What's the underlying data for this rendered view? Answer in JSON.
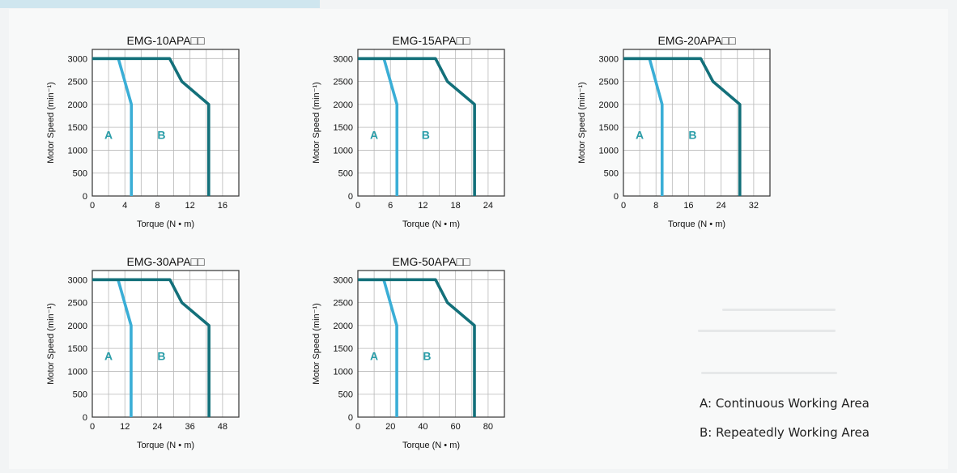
{
  "header_band_color": "#cfe6ef",
  "colors": {
    "continuous": "#3aaed6",
    "repeated": "#13707a",
    "area_label": "#2a9da8",
    "grid": "#b8b8b8",
    "frame": "#333333"
  },
  "legend": {
    "a": "A: Continuous Working Area",
    "b": "B: Repeatedly Working Area"
  },
  "chart_data": [
    {
      "type": "line",
      "title": "EMG-10APA□□",
      "xlabel": "Torque (N • m)",
      "ylabel": "Motor  Speed (min⁻¹)",
      "xlim": [
        0,
        18
      ],
      "ylim": [
        0,
        3200
      ],
      "xticks": [
        0,
        4,
        8,
        12,
        16
      ],
      "yticks": [
        0,
        500,
        1000,
        1500,
        2000,
        2500,
        3000
      ],
      "grid": true,
      "area_labels": [
        {
          "text": "A",
          "x": 2,
          "y": 1250
        },
        {
          "text": "B",
          "x": 8.5,
          "y": 1250
        }
      ],
      "series": [
        {
          "name": "A",
          "x": [
            0,
            3.2,
            4.8,
            4.8
          ],
          "y": [
            3000,
            3000,
            2000,
            0
          ]
        },
        {
          "name": "B",
          "x": [
            0,
            9.5,
            11,
            14.3,
            14.3
          ],
          "y": [
            3000,
            3000,
            2500,
            2000,
            0
          ]
        }
      ]
    },
    {
      "type": "line",
      "title": "EMG-15APA□□",
      "xlabel": "Torque (N • m)",
      "ylabel": "Motor  Speed (min⁻¹)",
      "xlim": [
        0,
        27
      ],
      "ylim": [
        0,
        3200
      ],
      "xticks": [
        0,
        6,
        12,
        18,
        24
      ],
      "yticks": [
        0,
        500,
        1000,
        1500,
        2000,
        2500,
        3000
      ],
      "grid": true,
      "area_labels": [
        {
          "text": "A",
          "x": 3,
          "y": 1250
        },
        {
          "text": "B",
          "x": 12.5,
          "y": 1250
        }
      ],
      "series": [
        {
          "name": "A",
          "x": [
            0,
            4.8,
            7.2,
            7.2
          ],
          "y": [
            3000,
            3000,
            2000,
            0
          ]
        },
        {
          "name": "B",
          "x": [
            0,
            14.3,
            16.5,
            21.5,
            21.5
          ],
          "y": [
            3000,
            3000,
            2500,
            2000,
            0
          ]
        }
      ]
    },
    {
      "type": "line",
      "title": "EMG-20APA□□",
      "xlabel": "Torque (N • m)",
      "ylabel": "Motor  Speed (min⁻¹)",
      "xlim": [
        0,
        36
      ],
      "ylim": [
        0,
        3200
      ],
      "xticks": [
        0,
        8,
        16,
        24,
        32
      ],
      "yticks": [
        0,
        500,
        1000,
        1500,
        2000,
        2500,
        3000
      ],
      "grid": true,
      "area_labels": [
        {
          "text": "A",
          "x": 4,
          "y": 1250
        },
        {
          "text": "B",
          "x": 17,
          "y": 1250
        }
      ],
      "series": [
        {
          "name": "A",
          "x": [
            0,
            6.4,
            9.5,
            9.5
          ],
          "y": [
            3000,
            3000,
            2000,
            0
          ]
        },
        {
          "name": "B",
          "x": [
            0,
            19,
            22,
            28.6,
            28.6
          ],
          "y": [
            3000,
            3000,
            2500,
            2000,
            0
          ]
        }
      ]
    },
    {
      "type": "line",
      "title": "EMG-30APA□□",
      "xlabel": "Torque (N • m)",
      "ylabel": "Motor  Speed (min⁻¹)",
      "xlim": [
        0,
        54
      ],
      "ylim": [
        0,
        3200
      ],
      "xticks": [
        0,
        12,
        24,
        36,
        48
      ],
      "yticks": [
        0,
        500,
        1000,
        1500,
        2000,
        2500,
        3000
      ],
      "grid": true,
      "area_labels": [
        {
          "text": "A",
          "x": 6,
          "y": 1250
        },
        {
          "text": "B",
          "x": 25.5,
          "y": 1250
        }
      ],
      "series": [
        {
          "name": "A",
          "x": [
            0,
            9.5,
            14.3,
            14.3
          ],
          "y": [
            3000,
            3000,
            2000,
            0
          ]
        },
        {
          "name": "B",
          "x": [
            0,
            28.6,
            33,
            43,
            43
          ],
          "y": [
            3000,
            3000,
            2500,
            2000,
            0
          ]
        }
      ]
    },
    {
      "type": "line",
      "title": "EMG-50APA□□",
      "xlabel": "Torque (N • m)",
      "ylabel": "Motor  Speed (min⁻¹)",
      "xlim": [
        0,
        90
      ],
      "ylim": [
        0,
        3200
      ],
      "xticks": [
        0,
        20,
        40,
        60,
        80
      ],
      "yticks": [
        0,
        500,
        1000,
        1500,
        2000,
        2500,
        3000
      ],
      "grid": true,
      "area_labels": [
        {
          "text": "A",
          "x": 10,
          "y": 1250
        },
        {
          "text": "B",
          "x": 42.5,
          "y": 1250
        }
      ],
      "series": [
        {
          "name": "A",
          "x": [
            0,
            15.9,
            23.9,
            23.9
          ],
          "y": [
            3000,
            3000,
            2000,
            0
          ]
        },
        {
          "name": "B",
          "x": [
            0,
            47.7,
            55,
            71.6,
            71.6
          ],
          "y": [
            3000,
            3000,
            2500,
            2000,
            0
          ]
        }
      ]
    }
  ]
}
